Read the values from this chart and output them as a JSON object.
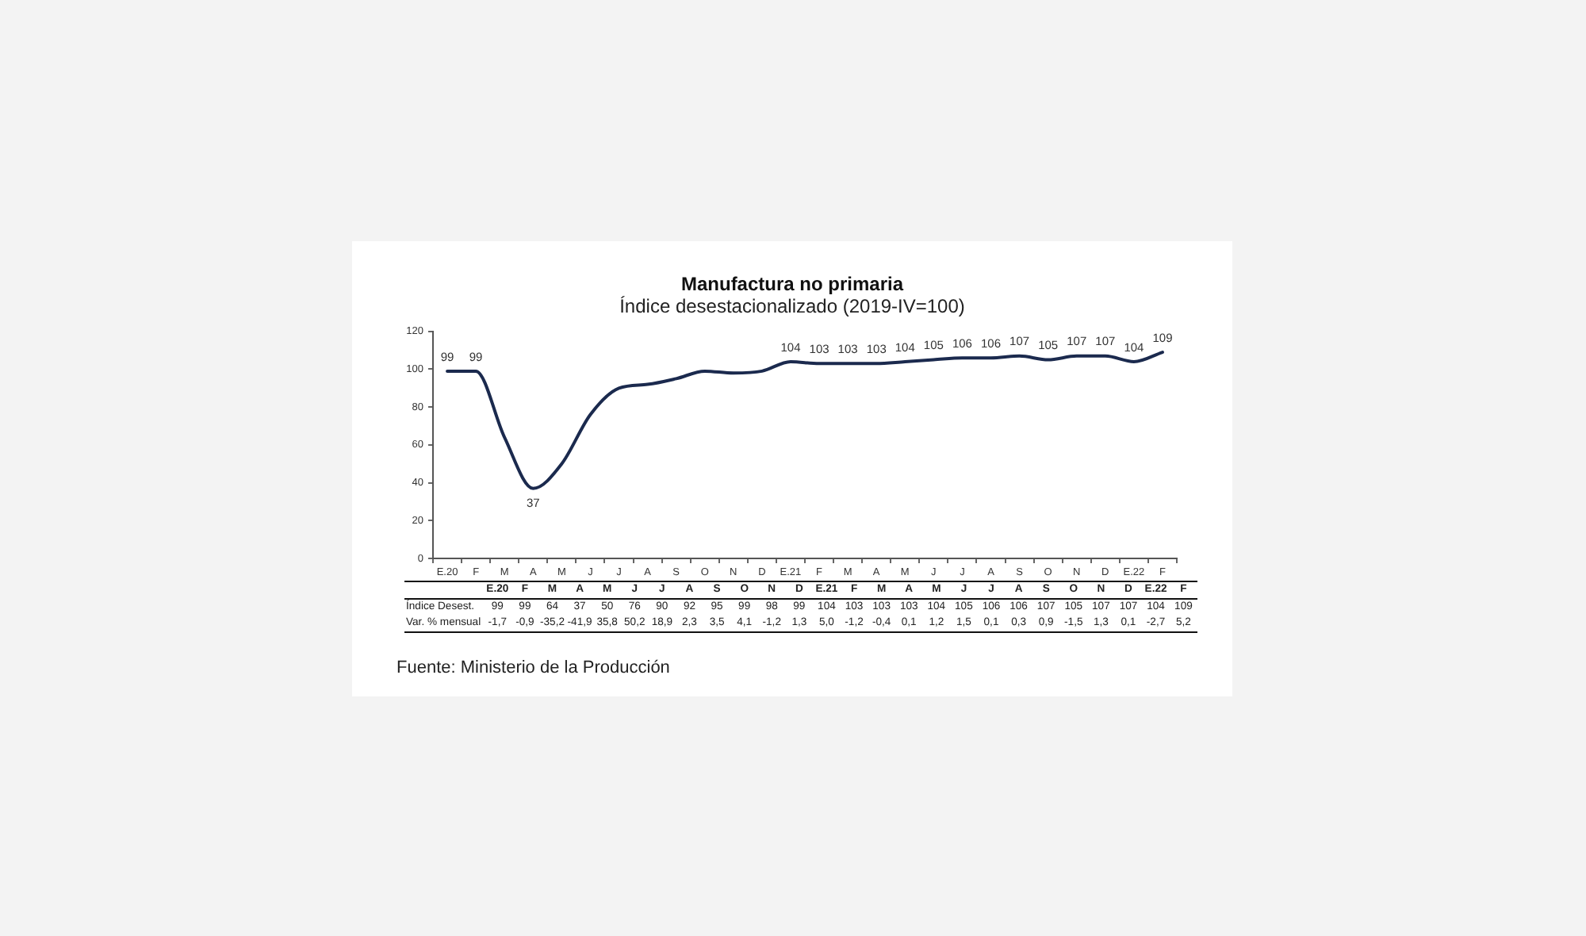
{
  "chart_data": [
    {
      "type": "line",
      "title": "Manufactura no primaria",
      "subtitle": "Índice desestacionalizado (2019-IV=100)",
      "categories": [
        "E.20",
        "F",
        "M",
        "A",
        "M",
        "J",
        "J",
        "A",
        "S",
        "O",
        "N",
        "D",
        "E.21",
        "F",
        "M",
        "A",
        "M",
        "J",
        "J",
        "A",
        "S",
        "O",
        "N",
        "D",
        "E.22",
        "F"
      ],
      "series": [
        {
          "color": "#1b2a4e",
          "values": [
            99,
            99,
            64,
            37,
            50,
            76,
            90,
            92,
            95,
            99,
            98,
            99,
            104,
            103,
            103,
            103,
            104,
            105,
            106,
            106,
            107,
            105,
            107,
            107,
            104,
            109
          ],
          "value_labels": [
            "99",
            "99",
            null,
            "37",
            null,
            null,
            null,
            null,
            null,
            null,
            null,
            null,
            "104",
            "103",
            "103",
            "103",
            "104",
            "105",
            "106",
            "106",
            "107",
            "105",
            "107",
            "107",
            "104",
            "109"
          ]
        }
      ],
      "ylim": [
        0,
        120
      ],
      "yticks": [
        0,
        20,
        40,
        60,
        80,
        100,
        120
      ],
      "grid": false,
      "legend": false,
      "marker": "none"
    },
    {
      "type": "other",
      "categories": [
        "E.20",
        "F",
        "M",
        "A",
        "M",
        "J",
        "J",
        "A",
        "S",
        "O",
        "N",
        "D",
        "E.21",
        "F",
        "M",
        "A",
        "M",
        "J",
        "J",
        "A",
        "S",
        "O",
        "N",
        "D",
        "E.22",
        "F"
      ],
      "series": [
        {
          "name": "Índice Desest.",
          "values": [
            99,
            99,
            64,
            37,
            50,
            76,
            90,
            92,
            95,
            99,
            98,
            99,
            104,
            103,
            103,
            103,
            104,
            105,
            106,
            106,
            107,
            105,
            107,
            107,
            104,
            109
          ]
        },
        {
          "name": "Var. % mensual",
          "values": [
            -1.7,
            -0.9,
            -35.2,
            -41.9,
            35.8,
            50.2,
            18.9,
            2.3,
            3.5,
            4.1,
            -1.2,
            1.3,
            5.0,
            -1.2,
            -0.4,
            0.1,
            1.2,
            1.5,
            0.1,
            0.3,
            0.9,
            -1.5,
            1.3,
            0.1,
            -2.7,
            5.2
          ],
          "value_labels": [
            "-1,7",
            "-0,9",
            "-35,2",
            "-41,9",
            "35,8",
            "50,2",
            "18,9",
            "2,3",
            "3,5",
            "4,1",
            "-1,2",
            "1,3",
            "5,0",
            "-1,2",
            "-0,4",
            "0,1",
            "1,2",
            "1,5",
            "0,1",
            "0,3",
            "0,9",
            "-1,5",
            "1,3",
            "0,1",
            "-2,7",
            "5,2"
          ]
        }
      ],
      "data_labels": true,
      "annotations": [
        "Fuente: Ministerio de la Producción"
      ]
    }
  ]
}
